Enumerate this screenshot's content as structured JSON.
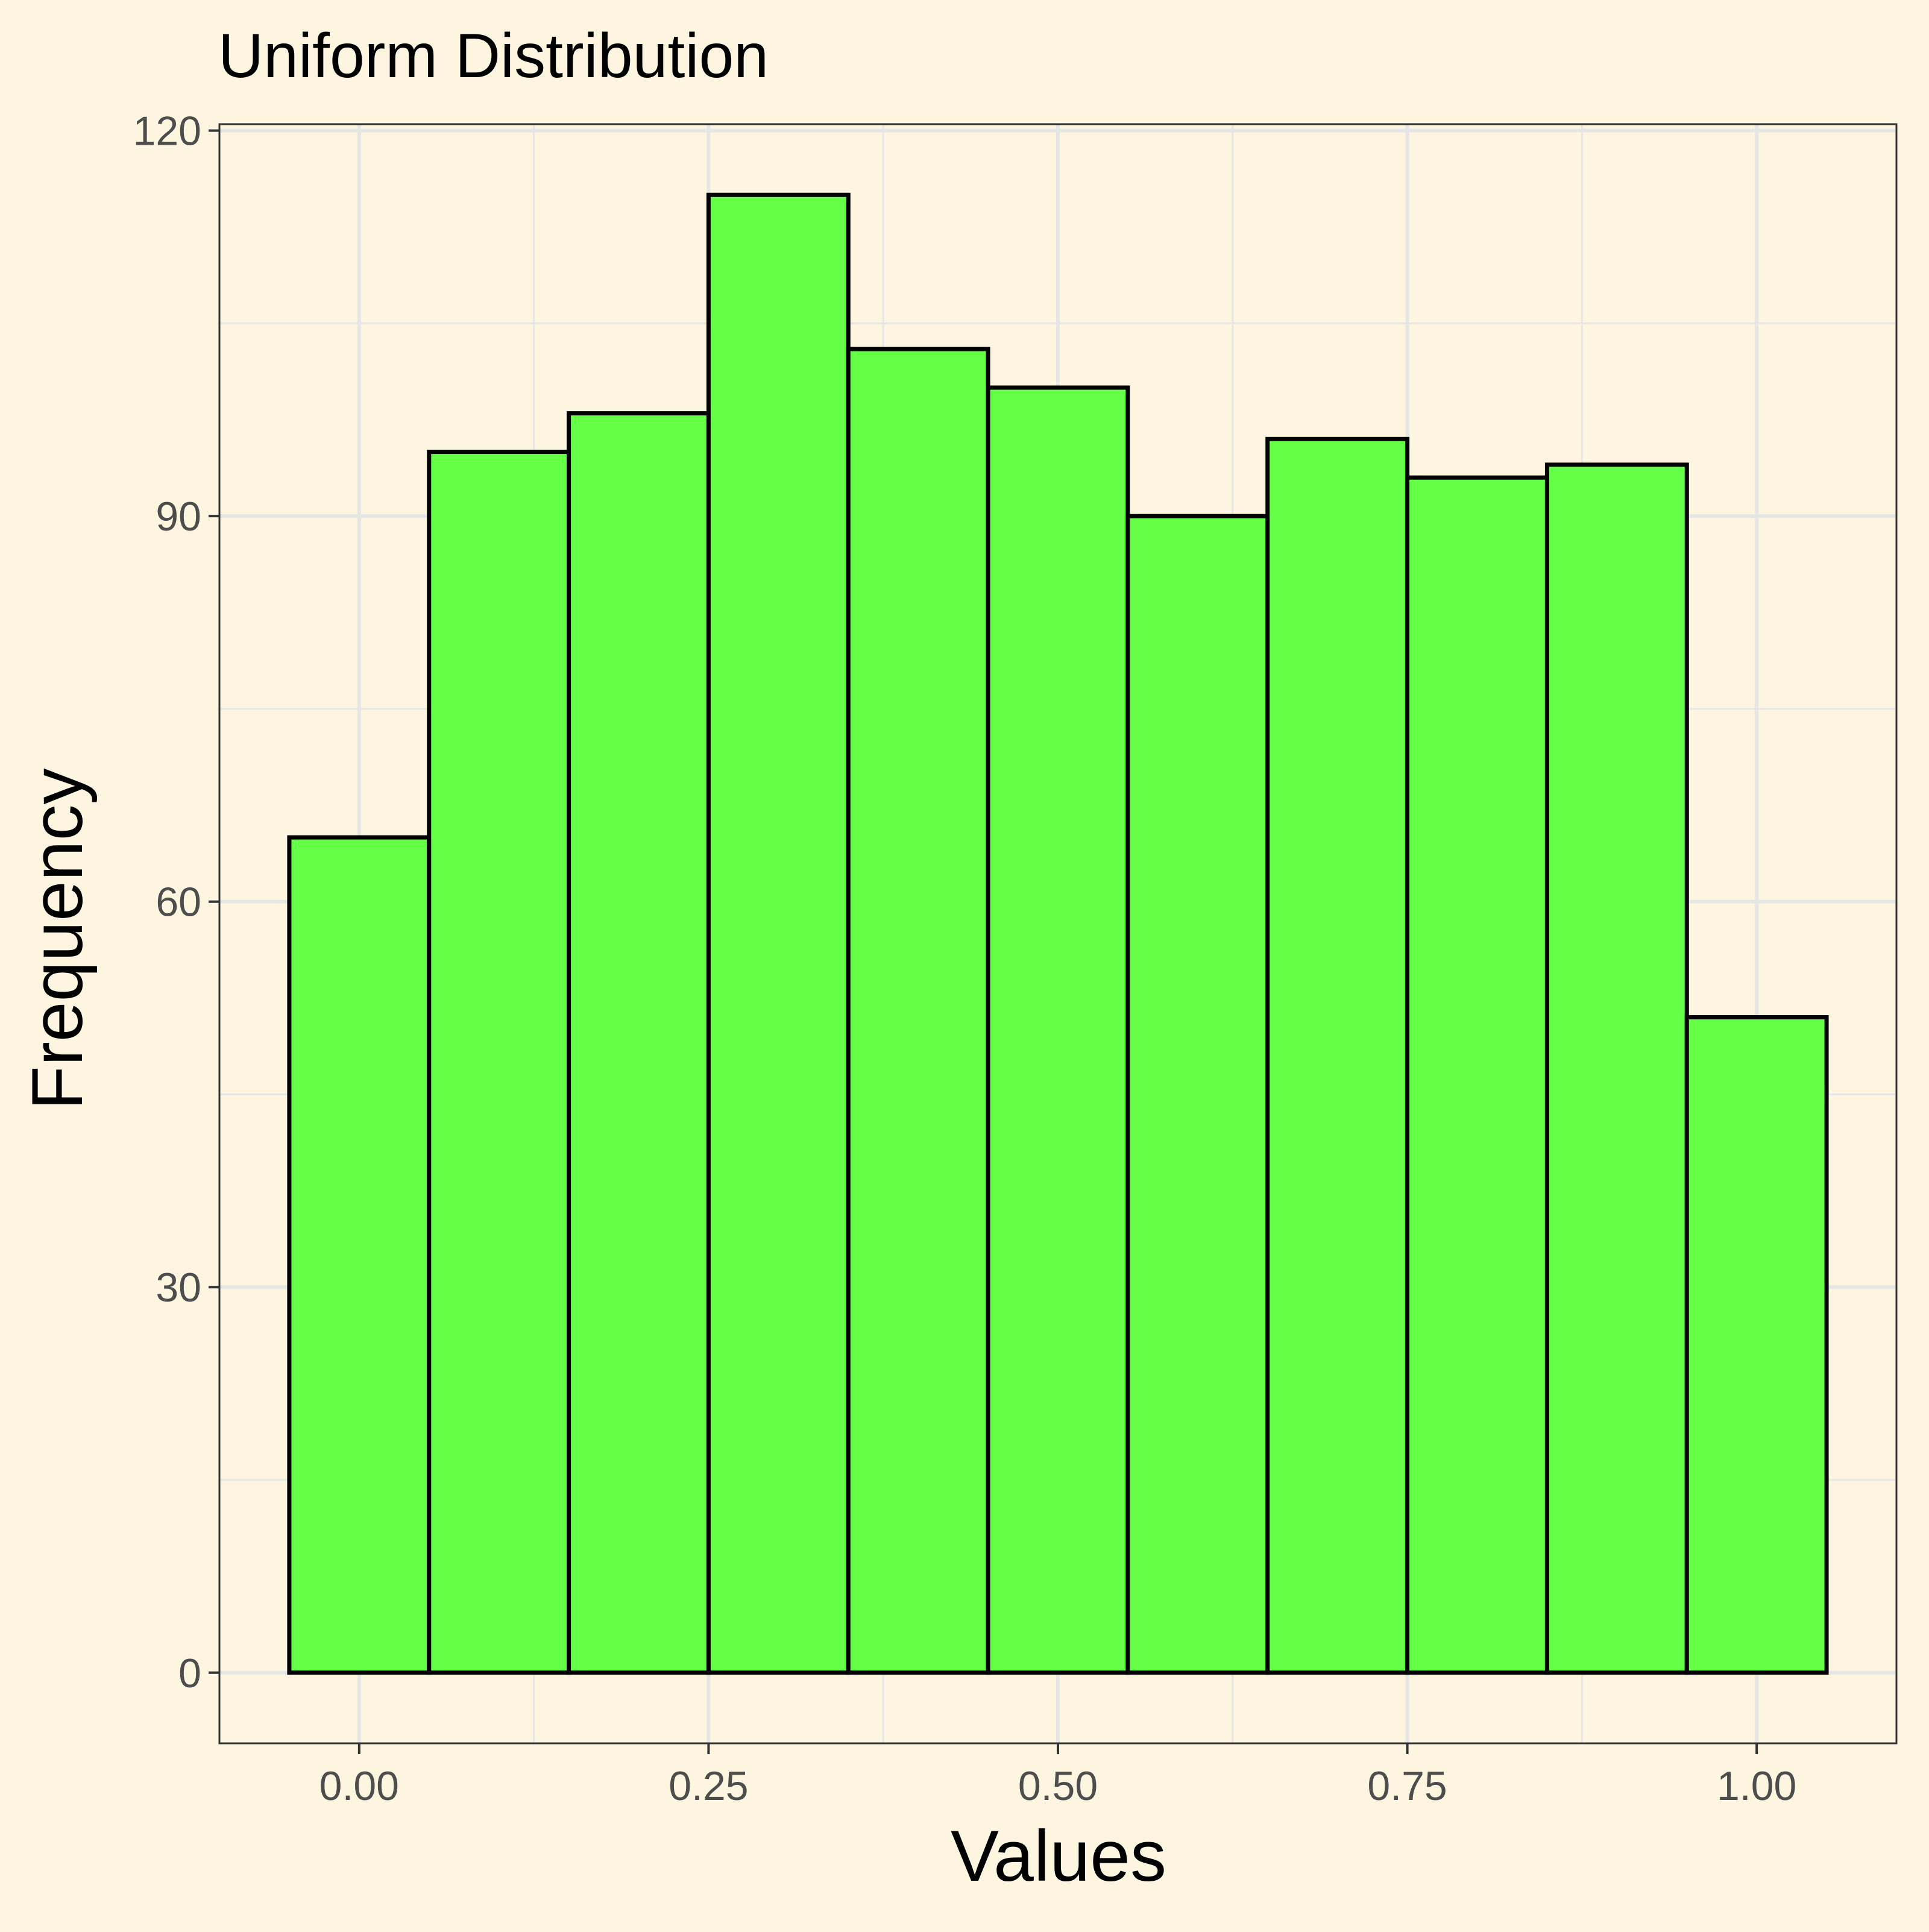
{
  "colors": {
    "background": "#fdf5e0",
    "panel": "#fdf5e0",
    "grid": "#e6e6e6",
    "bar_fill": "#66ff47",
    "bar_stroke": "#000000",
    "axis_text": "#4d4d4d",
    "title_text": "#000000"
  },
  "chart_data": {
    "type": "bar",
    "title": "Uniform Distribution",
    "xlabel": "Values",
    "ylabel": "Frequency",
    "bin_width": 0.1,
    "bin_centers": [
      0.0,
      0.1,
      0.2,
      0.3,
      0.4,
      0.5,
      0.6,
      0.7,
      0.8,
      0.9,
      1.0
    ],
    "values": [
      65,
      95,
      98,
      115,
      103,
      100,
      90,
      96,
      93,
      94,
      51
    ],
    "xlim": [
      -0.1,
      1.1
    ],
    "ylim": [
      -5.5,
      120.5
    ],
    "x_ticks": [
      0.0,
      0.25,
      0.5,
      0.75,
      1.0
    ],
    "x_tick_labels": [
      "0.00",
      "0.25",
      "0.50",
      "0.75",
      "1.00"
    ],
    "y_ticks": [
      0,
      30,
      60,
      90,
      120
    ],
    "y_tick_labels": [
      "0",
      "30",
      "60",
      "90",
      "120"
    ],
    "grid": true,
    "legend": "none"
  }
}
